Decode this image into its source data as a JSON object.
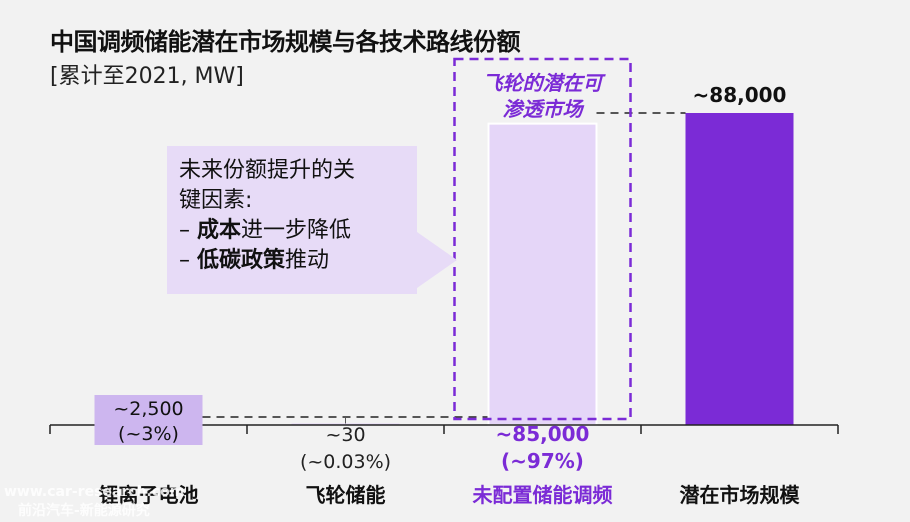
{
  "title": "中国调频储能潜在市场规模与各技术路线份额",
  "subtitle": "[累计至2021, MW]",
  "callout": {
    "line1": "未来份额提升的关",
    "line2": "键因素:",
    "item1_dash": "–",
    "item1_bold": "成本",
    "item1_rest": "进一步降低",
    "item2_dash": "–",
    "item2_bold": "低碳政策",
    "item2_rest": "推动"
  },
  "flywheel_box_label_1": "飞轮的潜在可",
  "flywheel_box_label_2": "渗透市场",
  "watermark_1": "www.car-research.com",
  "watermark_2": "前沿汽车-新能源研究",
  "colors": {
    "accent": "#7b2bd6",
    "light_purple": "#e5d6f8",
    "label_purple": "#6b2bbf",
    "callout_bg": "#e7dbf7"
  },
  "chart_data": {
    "type": "bar",
    "categories": [
      "锂离子电池",
      "飞轮储能",
      "未配置储能调频",
      "潜在市场规模"
    ],
    "values": [
      2500,
      30,
      85000,
      88000
    ],
    "value_labels": [
      "~2,500",
      "~30",
      "~85,000",
      "~88,000"
    ],
    "share_labels": [
      "(~3%)",
      "(~0.03%)",
      "(~97%)",
      ""
    ],
    "ylim": [
      0,
      88000
    ]
  }
}
